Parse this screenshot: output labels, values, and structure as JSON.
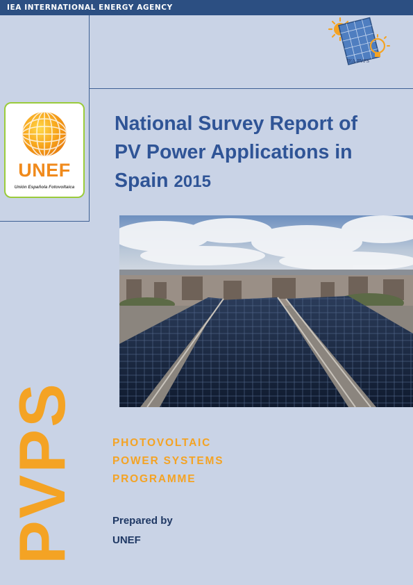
{
  "header": {
    "agency_name": "IEA INTERNATIONAL ENERGY AGENCY"
  },
  "partner_logo": {
    "word": "UNEF",
    "subtitle": "Unión Española Fotovoltaica"
  },
  "iea_pvps_logo": {
    "label": "IEA-PVPS"
  },
  "report": {
    "title_line1": "National Survey Report of",
    "title_line2": "PV Power Applications in",
    "title_line3": "Spain",
    "year": "2015"
  },
  "cover_photo": {
    "subject": "rooftop solar panels over city"
  },
  "brand": {
    "vertical_text": "PVPS"
  },
  "programme": {
    "line1": "PHOTOVOLTAIC",
    "line2": "POWER SYSTEMS",
    "line3": "PROGRAMME"
  },
  "prepared": {
    "label": "Prepared by",
    "by": "UNEF"
  },
  "colors": {
    "header_bar": "#2c4f82",
    "title": "#2f5496",
    "accent_orange": "#f4a324",
    "background": "#c9d3e6"
  }
}
